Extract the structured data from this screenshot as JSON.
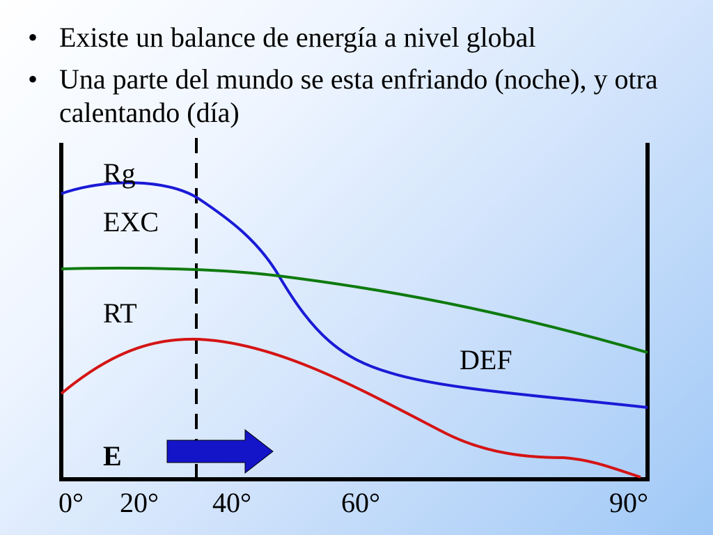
{
  "bullets": [
    {
      "marker": "•",
      "text": "Existe un balance de energía a nivel global"
    },
    {
      "marker": "•",
      "text": "Una parte del mundo se esta enfriando (noche), y otra calentando (día)"
    }
  ],
  "diagram": {
    "curve_labels": {
      "rg": "Rg",
      "exc": "EXC",
      "rt": "RT",
      "def": "DEF",
      "e": "E"
    },
    "x_ticks": [
      "0°",
      "20°",
      "40°",
      "60°",
      "90°"
    ],
    "colors": {
      "rg": "#1a1ad6",
      "rt": "#0e7a0e",
      "e": "#d41414",
      "arrow": "#1414c8",
      "axis": "#000000"
    }
  }
}
